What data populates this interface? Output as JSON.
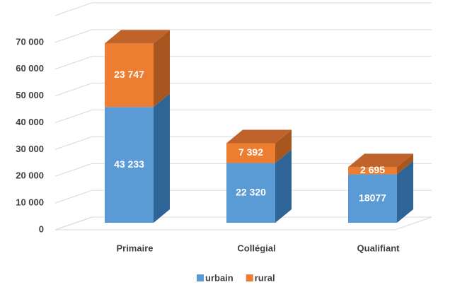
{
  "chart_data": {
    "type": "bar3d_stacked",
    "categories": [
      "Primaire",
      "Collégial",
      "Qualifiant"
    ],
    "series": [
      {
        "name": "urbain",
        "color": "#5b9bd5",
        "side_color": "#2f6596",
        "top_color": "#4a86bf",
        "values": [
          43233,
          22320,
          18077
        ],
        "value_labels": [
          "43 233",
          "22 320",
          "18077"
        ]
      },
      {
        "name": "rural",
        "color": "#ed7d31",
        "side_color": "#a8561f",
        "top_color": "#c0632a",
        "values": [
          23747,
          7392,
          2695
        ],
        "value_labels": [
          "23 747",
          "7 392",
          "2 695"
        ]
      }
    ],
    "ylim": [
      0,
      80000
    ],
    "yticks": [
      0,
      {
        "value": 10000,
        "label": "10 000"
      },
      {
        "value": 20000,
        "label": "20 000"
      },
      {
        "value": 30000,
        "label": "30 000"
      },
      {
        "value": 40000,
        "label": "40 000"
      },
      {
        "value": 50000,
        "label": "50 000"
      },
      {
        "value": 60000,
        "label": "60 000"
      },
      {
        "value": 70000,
        "label": "70 000"
      }
    ],
    "grid": true,
    "legend": "bottom"
  }
}
